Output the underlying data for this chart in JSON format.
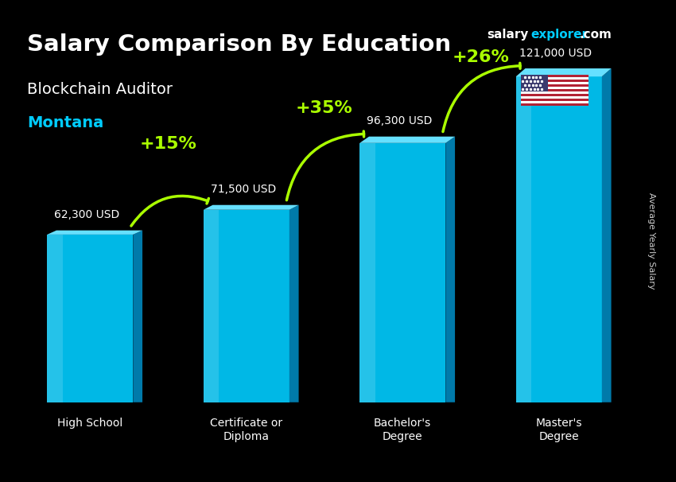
{
  "title_main": "Salary Comparison By Education",
  "subtitle1": "Blockchain Auditor",
  "subtitle2": "Montana",
  "categories": [
    "High School",
    "Certificate or\nDiploma",
    "Bachelor's\nDegree",
    "Master's\nDegree"
  ],
  "values": [
    62300,
    71500,
    96300,
    121000
  ],
  "value_labels": [
    "62,300 USD",
    "71,500 USD",
    "96,300 USD",
    "121,000 USD"
  ],
  "pct_labels": [
    "+15%",
    "+35%",
    "+26%"
  ],
  "bar_color_top": "#00d4ff",
  "bar_color_bottom": "#0077aa",
  "bar_color_face": "#00aadd",
  "bg_color": "#1a1a2e",
  "text_color_white": "#ffffff",
  "text_color_cyan": "#00ccff",
  "text_color_green": "#aaff00",
  "ylabel_text": "Average Yearly Salary",
  "brand_salary": "salary",
  "brand_explorer": "explorer",
  "brand_com": ".com",
  "ylim": [
    0,
    145000
  ]
}
